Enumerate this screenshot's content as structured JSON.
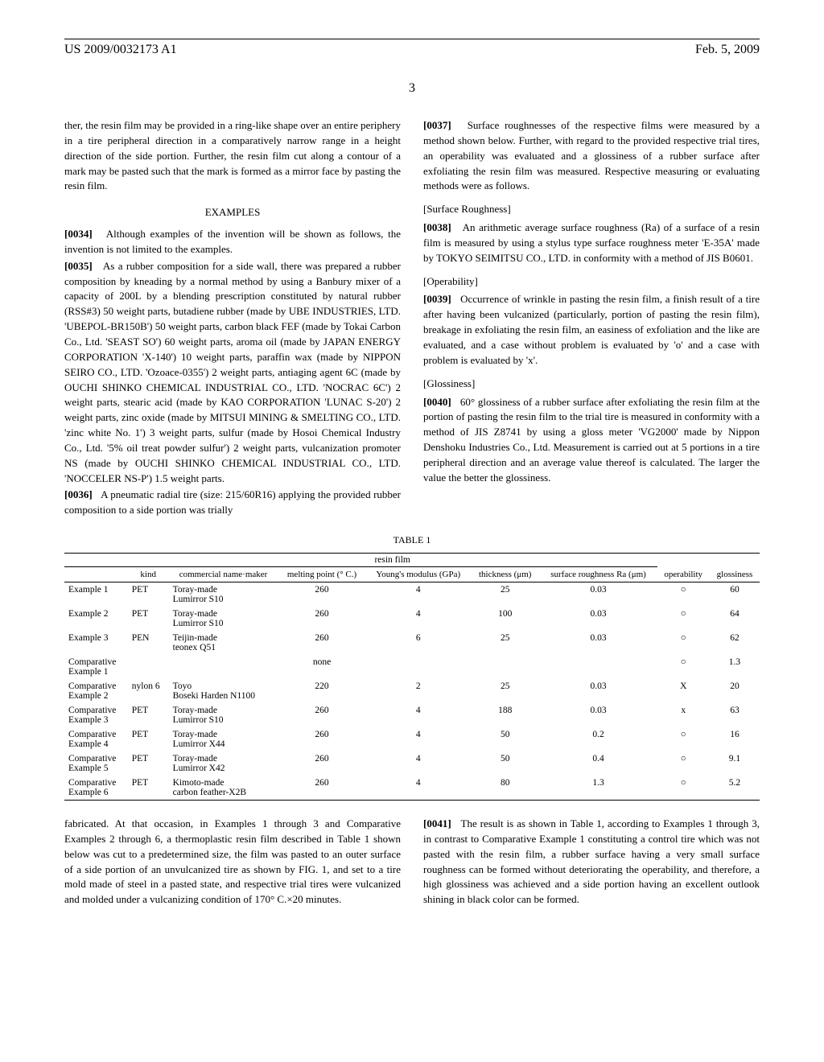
{
  "header": {
    "docnum": "US 2009/0032173 A1",
    "date": "Feb. 5, 2009"
  },
  "page_number": "3",
  "left_col": {
    "p1": "ther, the resin film may be provided in a ring-like shape over an entire periphery in a tire peripheral direction in a comparatively narrow range in a height direction of the side portion. Further, the resin film cut along a contour of a mark may be pasted such that the mark is formed as a mirror face by pasting the resin film.",
    "h_examples": "EXAMPLES",
    "p34_num": "[0034]",
    "p34": "Although examples of the invention will be shown as follows, the invention is not limited to the examples.",
    "p35_num": "[0035]",
    "p35": "As a rubber composition for a side wall, there was prepared a rubber composition by kneading by a normal method by using a Banbury mixer of a capacity of 200L by a blending prescription constituted by natural rubber (RSS#3) 50 weight parts, butadiene rubber (made by UBE INDUSTRIES, LTD. 'UBEPOL-BR150B') 50 weight parts, carbon black FEF (made by Tokai Carbon Co., Ltd. 'SEAST SO') 60 weight parts, aroma oil (made by JAPAN ENERGY CORPORATION 'X-140') 10 weight parts, paraffin wax (made by NIPPON SEIRO CO., LTD. 'Ozoace-0355') 2 weight parts, antiaging agent 6C (made by OUCHI SHINKO CHEMICAL INDUSTRIAL CO., LTD. 'NOCRAC 6C') 2 weight parts, stearic acid (made by KAO CORPORATION 'LUNAC S-20') 2 weight parts, zinc oxide (made by MITSUI MINING & SMELTING CO., LTD. 'zinc white No. 1') 3 weight parts, sulfur (made by Hosoi Chemical Industry Co., Ltd. '5% oil treat powder sulfur') 2 weight parts, vulcanization promoter NS (made by OUCHI SHINKO CHEMICAL INDUSTRIAL CO., LTD. 'NOCCELER NS-P') 1.5 weight parts.",
    "p36_num": "[0036]",
    "p36": "A pneumatic radial tire (size: 215/60R16) applying the provided rubber composition to a side portion was trially"
  },
  "right_col": {
    "p37_num": "[0037]",
    "p37": "Surface roughnesses of the respective films were measured by a method shown below. Further, with regard to the provided respective trial tires, an operability was evaluated and a glossiness of a rubber surface after exfoliating the resin film was measured. Respective measuring or evaluating methods were as follows.",
    "h_sr": "[Surface Roughness]",
    "p38_num": "[0038]",
    "p38": "An arithmetic average surface roughness (Ra) of a surface of a resin film is measured by using a stylus type surface roughness meter 'E-35A' made by TOKYO SEIMITSU CO., LTD. in conformity with a method of JIS B0601.",
    "h_op": "[Operability]",
    "p39_num": "[0039]",
    "p39": "Occurrence of wrinkle in pasting the resin film, a finish result of a tire after having been vulcanized (particularly, portion of pasting the resin film), breakage in exfoliating the resin film, an easiness of exfoliation and the like are evaluated, and a case without problem is evaluated by 'o' and a case with problem is evaluated by 'x'.",
    "h_gl": "[Glossiness]",
    "p40_num": "[0040]",
    "p40": "60° glossiness of a rubber surface after exfoliating the resin film at the portion of pasting the resin film to the trial tire is measured in conformity with a method of JIS Z8741 by using a gloss meter 'VG2000' made by Nippon Denshoku Industries Co., Ltd. Measurement is carried out at 5 portions in a tire peripheral direction and an average value thereof is calculated. The larger the value the better the glossiness."
  },
  "table": {
    "title": "TABLE 1",
    "group": "resin film",
    "columns": {
      "c1": "",
      "c2": "kind",
      "c3": "commercial name·maker",
      "c4": "melting point (° C.)",
      "c5": "Young's modulus (GPa)",
      "c6": "thickness (μm)",
      "c7": "surface roughness Ra (μm)",
      "c8": "operability",
      "c9": "glossiness"
    },
    "rows": [
      {
        "c1": "Example 1",
        "c2": "PET",
        "c3": "Toray-made Lumirror S10",
        "c4": "260",
        "c5": "4",
        "c6": "25",
        "c7": "0.03",
        "c8": "○",
        "c9": "60"
      },
      {
        "c1": "Example 2",
        "c2": "PET",
        "c3": "Toray-made Lumirror S10",
        "c4": "260",
        "c5": "4",
        "c6": "100",
        "c7": "0.03",
        "c8": "○",
        "c9": "64"
      },
      {
        "c1": "Example 3",
        "c2": "PEN",
        "c3": "Teijin-made teonex Q51",
        "c4": "260",
        "c5": "6",
        "c6": "25",
        "c7": "0.03",
        "c8": "○",
        "c9": "62"
      },
      {
        "c1": "Comparative Example 1",
        "c2": "",
        "c3": "",
        "c4": "none",
        "c5": "",
        "c6": "",
        "c7": "",
        "c8": "○",
        "c9": "1.3"
      },
      {
        "c1": "Comparative Example 2",
        "c2": "nylon 6",
        "c3": "Toyo Boseki Harden N1100",
        "c4": "220",
        "c5": "2",
        "c6": "25",
        "c7": "0.03",
        "c8": "X",
        "c9": "20"
      },
      {
        "c1": "Comparative Example 3",
        "c2": "PET",
        "c3": "Toray-made Lumirror S10",
        "c4": "260",
        "c5": "4",
        "c6": "188",
        "c7": "0.03",
        "c8": "x",
        "c9": "63"
      },
      {
        "c1": "Comparative Example 4",
        "c2": "PET",
        "c3": "Toray-made Lumirror X44",
        "c4": "260",
        "c5": "4",
        "c6": "50",
        "c7": "0.2",
        "c8": "○",
        "c9": "16"
      },
      {
        "c1": "Comparative Example 5",
        "c2": "PET",
        "c3": "Toray-made Lumirror X42",
        "c4": "260",
        "c5": "4",
        "c6": "50",
        "c7": "0.4",
        "c8": "○",
        "c9": "9.1"
      },
      {
        "c1": "Comparative Example 6",
        "c2": "PET",
        "c3": "Kimoto-made carbon feather-X2B",
        "c4": "260",
        "c5": "4",
        "c6": "80",
        "c7": "1.3",
        "c8": "○",
        "c9": "5.2"
      }
    ]
  },
  "lower_left": {
    "p": "fabricated. At that occasion, in Examples 1 through 3 and Comparative Examples 2 through 6, a thermoplastic resin film described in Table 1 shown below was cut to a predetermined size, the film was pasted to an outer surface of a side portion of an unvulcanized tire as shown by FIG. 1, and set to a tire mold made of steel in a pasted state, and respective trial tires were vulcanized and molded under a vulcanizing condition of 170° C.×20 minutes."
  },
  "lower_right": {
    "p41_num": "[0041]",
    "p41": "The result is as shown in Table 1, according to Examples 1 through 3, in contrast to Comparative Example 1 constituting a control tire which was not pasted with the resin film, a rubber surface having a very small surface roughness can be formed without deteriorating the operability, and therefore, a high glossiness was achieved and a side portion having an excellent outlook shining in black color can be formed."
  }
}
